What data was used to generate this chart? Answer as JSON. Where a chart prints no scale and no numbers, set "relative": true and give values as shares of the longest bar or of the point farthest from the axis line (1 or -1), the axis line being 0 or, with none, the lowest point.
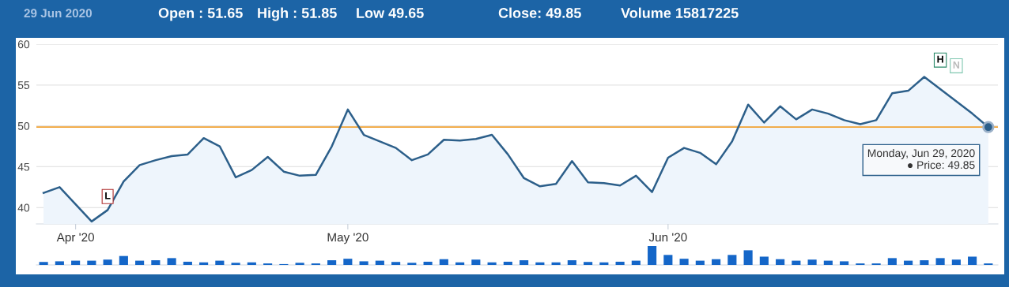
{
  "chart_data": [
    {
      "type": "area",
      "title": "29 Jun 2020",
      "annotations": [
        "Open : 51.65",
        "High : 51.85",
        "Low 49.65",
        "Close: 49.85",
        "Volume 15817225",
        "Monday, Jun 29, 2020",
        "● Price: 49.85",
        "L",
        "H",
        "N"
      ],
      "categories": [
        null,
        null,
        "Apr '20",
        null,
        null,
        null,
        null,
        null,
        null,
        null,
        null,
        null,
        null,
        null,
        null,
        null,
        null,
        null,
        null,
        "May '20",
        null,
        null,
        null,
        null,
        null,
        null,
        null,
        null,
        null,
        null,
        null,
        null,
        null,
        null,
        null,
        null,
        null,
        null,
        null,
        "Jun '20",
        null,
        null,
        null,
        null,
        null,
        null,
        null,
        null,
        null,
        null,
        null,
        null,
        null,
        null,
        null,
        null,
        null,
        null,
        null,
        null
      ],
      "series": [
        {
          "color": "#2c5f8a",
          "values": [
            41.8,
            42.5,
            40.4,
            38.3,
            39.7,
            43.2,
            45.2,
            45.8,
            46.3,
            46.5,
            48.5,
            47.5,
            43.7,
            44.6,
            46.2,
            44.4,
            43.9,
            44.0,
            47.5,
            52.0,
            48.9,
            48.1,
            47.3,
            45.8,
            46.5,
            48.3,
            48.2,
            48.4,
            48.9,
            46.5,
            43.6,
            42.6,
            42.9,
            45.7,
            43.1,
            43.0,
            42.7,
            43.9,
            41.9,
            46.1,
            47.3,
            46.7,
            45.3,
            48.1,
            52.6,
            50.4,
            52.4,
            50.8,
            52.0,
            51.5,
            50.7,
            50.2,
            50.7,
            54.0,
            54.3,
            56.0,
            54.5,
            53.0,
            51.5,
            49.85
          ]
        }
      ],
      "ylim": [
        38,
        60
      ],
      "yticks": [
        40,
        45,
        50,
        55,
        60
      ],
      "grid": "y",
      "ref_lines": [
        {
          "axis": "y",
          "value": 49.85,
          "color": "#f0a030"
        }
      ]
    },
    {
      "type": "bar",
      "relative": true,
      "categories": [
        null,
        null,
        null,
        null,
        null,
        null,
        null,
        null,
        null,
        null,
        null,
        null,
        null,
        null,
        null,
        null,
        null,
        null,
        null,
        null,
        null,
        null,
        null,
        null,
        null,
        null,
        null,
        null,
        null,
        null,
        null,
        null,
        null,
        null,
        null,
        null,
        null,
        null,
        null,
        null,
        null,
        null,
        null,
        null,
        null,
        null,
        null,
        null,
        null,
        null,
        null,
        null,
        null,
        null,
        null,
        null,
        null,
        null,
        null,
        null
      ],
      "series": [
        {
          "color": "#1466c8",
          "values": [
            0.157,
            0.191,
            0.225,
            0.225,
            0.281,
            0.472,
            0.225,
            0.247,
            0.36,
            0.169,
            0.135,
            0.225,
            0.112,
            0.135,
            0.079,
            0.045,
            0.112,
            0.079,
            0.247,
            0.326,
            0.191,
            0.225,
            0.157,
            0.112,
            0.169,
            0.303,
            0.135,
            0.281,
            0.135,
            0.169,
            0.247,
            0.135,
            0.135,
            0.247,
            0.157,
            0.135,
            0.169,
            0.225,
            1,
            0.528,
            0.326,
            0.225,
            0.303,
            0.528,
            0.775,
            0.438,
            0.303,
            0.225,
            0.281,
            0.225,
            0.191,
            0.079,
            0.079,
            0.36,
            0.225,
            0.247,
            0.36,
            0.281,
            0.438,
            0.079
          ]
        }
      ]
    }
  ]
}
